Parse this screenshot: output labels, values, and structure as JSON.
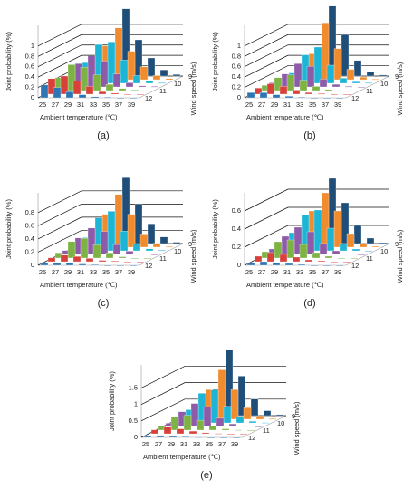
{
  "chart_data": [
    {
      "type": "bar3d",
      "caption": "(a)",
      "x_label": "Ambient temperature (℃)",
      "y_label": "Joint probability (%)",
      "z_label": "Wind speed (m/s)",
      "categories": [
        25,
        27,
        29,
        31,
        33,
        35,
        37,
        39
      ],
      "ylim": [
        0,
        1.4
      ],
      "yticks": [
        0,
        0.2,
        0.4,
        0.6,
        0.8,
        1
      ],
      "series": [
        {
          "name": "9",
          "color": "#1f4e79",
          "values": [
            0.05,
            0.2,
            0.5,
            1.3,
            0.7,
            0.35,
            0.12,
            0.03
          ]
        },
        {
          "name": null,
          "color": "#f08c2e",
          "values": [
            0.08,
            0.3,
            0.65,
            1.0,
            0.55,
            0.25,
            0.08,
            0.02
          ]
        },
        {
          "name": "10",
          "color": "#1cb5d6",
          "values": [
            0.15,
            0.4,
            0.75,
            0.8,
            0.45,
            0.15,
            0.04,
            0.01
          ]
        },
        {
          "name": null,
          "color": "#8e5ba8",
          "values": [
            0.2,
            0.45,
            0.6,
            0.5,
            0.25,
            0.08,
            0.02,
            0.01
          ]
        },
        {
          "name": "11",
          "color": "#7cb342",
          "values": [
            0.25,
            0.5,
            0.45,
            0.3,
            0.12,
            0.04,
            0.01,
            0
          ]
        },
        {
          "name": null,
          "color": "#d9403a",
          "values": [
            0.3,
            0.35,
            0.25,
            0.15,
            0.05,
            0.02,
            0,
            0
          ]
        },
        {
          "name": "12",
          "color": "#2e75b6",
          "values": [
            0.25,
            0.2,
            0.12,
            0.06,
            0.02,
            0.01,
            0,
            0
          ]
        }
      ]
    },
    {
      "type": "bar3d",
      "caption": "(b)",
      "x_label": "Ambient temperature (℃)",
      "y_label": "Joint probability (%)",
      "z_label": "Wind speed (m/s)",
      "categories": [
        25,
        27,
        29,
        31,
        33,
        35,
        37,
        39
      ],
      "ylim": [
        0,
        1.4
      ],
      "yticks": [
        0,
        0.2,
        0.4,
        0.6,
        0.8,
        1
      ],
      "series": [
        {
          "name": "9",
          "color": "#1f4e79",
          "values": [
            0.02,
            0.1,
            0.4,
            1.35,
            0.8,
            0.3,
            0.08,
            0.02
          ]
        },
        {
          "name": null,
          "color": "#f08c2e",
          "values": [
            0.03,
            0.15,
            0.5,
            1.1,
            0.6,
            0.2,
            0.05,
            0.01
          ]
        },
        {
          "name": "10",
          "color": "#1cb5d6",
          "values": [
            0.05,
            0.2,
            0.55,
            0.7,
            0.35,
            0.1,
            0.03,
            0.01
          ]
        },
        {
          "name": null,
          "color": "#8e5ba8",
          "values": [
            0.08,
            0.25,
            0.45,
            0.4,
            0.15,
            0.05,
            0.01,
            0
          ]
        },
        {
          "name": "11",
          "color": "#7cb342",
          "values": [
            0.1,
            0.25,
            0.3,
            0.2,
            0.08,
            0.02,
            0,
            0
          ]
        },
        {
          "name": null,
          "color": "#d9403a",
          "values": [
            0.12,
            0.2,
            0.15,
            0.08,
            0.03,
            0.01,
            0,
            0
          ]
        },
        {
          "name": "12",
          "color": "#2e75b6",
          "values": [
            0.1,
            0.1,
            0.06,
            0.03,
            0.01,
            0,
            0,
            0
          ]
        }
      ]
    },
    {
      "type": "bar3d",
      "caption": "(c)",
      "x_label": "Ambient temperature (℃)",
      "y_label": "Joint probability (%)",
      "z_label": "Wind speed (m/s)",
      "categories": [
        25,
        27,
        29,
        31,
        33,
        35,
        37,
        39
      ],
      "ylim": [
        0,
        1.1
      ],
      "yticks": [
        0,
        0.2,
        0.4,
        0.6,
        0.8
      ],
      "series": [
        {
          "name": "9",
          "color": "#1f4e79",
          "values": [
            0.02,
            0.1,
            0.4,
            1.0,
            0.6,
            0.3,
            0.1,
            0.02
          ]
        },
        {
          "name": null,
          "color": "#f08c2e",
          "values": [
            0.03,
            0.15,
            0.5,
            0.8,
            0.5,
            0.2,
            0.06,
            0.01
          ]
        },
        {
          "name": "10",
          "color": "#1cb5d6",
          "values": [
            0.05,
            0.2,
            0.5,
            0.6,
            0.3,
            0.1,
            0.03,
            0.01
          ]
        },
        {
          "name": null,
          "color": "#8e5ba8",
          "values": [
            0.06,
            0.25,
            0.4,
            0.35,
            0.15,
            0.05,
            0.01,
            0
          ]
        },
        {
          "name": "11",
          "color": "#7cb342",
          "values": [
            0.08,
            0.25,
            0.3,
            0.2,
            0.08,
            0.02,
            0,
            0
          ]
        },
        {
          "name": null,
          "color": "#d9403a",
          "values": [
            0.06,
            0.1,
            0.08,
            0.05,
            0.02,
            0.01,
            0,
            0
          ]
        },
        {
          "name": "12",
          "color": "#2e75b6",
          "values": [
            0.04,
            0.04,
            0.03,
            0.02,
            0.01,
            0,
            0,
            0
          ]
        }
      ]
    },
    {
      "type": "bar3d",
      "caption": "(d)",
      "x_label": "Ambient temperature (℃)",
      "y_label": "Joint probability (%)",
      "z_label": "Wind speed (m/s)",
      "categories": [
        25,
        27,
        29,
        31,
        33,
        35,
        37,
        39
      ],
      "ylim": [
        0,
        0.8
      ],
      "yticks": [
        0,
        0.2,
        0.4,
        0.6
      ],
      "series": [
        {
          "name": "9",
          "color": "#1f4e79",
          "values": [
            0.02,
            0.1,
            0.35,
            0.72,
            0.45,
            0.2,
            0.06,
            0.01
          ]
        },
        {
          "name": null,
          "color": "#f08c2e",
          "values": [
            0.03,
            0.15,
            0.4,
            0.6,
            0.4,
            0.15,
            0.04,
            0.01
          ]
        },
        {
          "name": "10",
          "color": "#1cb5d6",
          "values": [
            0.05,
            0.2,
            0.4,
            0.45,
            0.25,
            0.08,
            0.02,
            0
          ]
        },
        {
          "name": null,
          "color": "#8e5ba8",
          "values": [
            0.06,
            0.2,
            0.3,
            0.25,
            0.12,
            0.04,
            0.01,
            0
          ]
        },
        {
          "name": "11",
          "color": "#7cb342",
          "values": [
            0.07,
            0.18,
            0.2,
            0.15,
            0.06,
            0.02,
            0,
            0
          ]
        },
        {
          "name": null,
          "color": "#d9403a",
          "values": [
            0.06,
            0.1,
            0.08,
            0.05,
            0.02,
            0.01,
            0,
            0
          ]
        },
        {
          "name": "12",
          "color": "#2e75b6",
          "values": [
            0.03,
            0.04,
            0.03,
            0.02,
            0.01,
            0,
            0,
            0
          ]
        }
      ]
    },
    {
      "type": "bar3d",
      "caption": "(e)",
      "x_label": "Ambient temperature (℃)",
      "y_label": "Joint probability (%)",
      "z_label": "Wind speed (m/s)",
      "categories": [
        25,
        27,
        29,
        31,
        33,
        35,
        37,
        39
      ],
      "ylim": [
        0,
        2.2
      ],
      "yticks": [
        0,
        0.5,
        1,
        1.5
      ],
      "series": [
        {
          "name": "9",
          "color": "#1f4e79",
          "values": [
            0.03,
            0.2,
            0.8,
            2.0,
            1.2,
            0.5,
            0.15,
            0.03
          ]
        },
        {
          "name": null,
          "color": "#f08c2e",
          "values": [
            0.05,
            0.3,
            0.9,
            1.5,
            0.9,
            0.35,
            0.1,
            0.02
          ]
        },
        {
          "name": "10",
          "color": "#1cb5d6",
          "values": [
            0.08,
            0.4,
            0.9,
            1.0,
            0.5,
            0.18,
            0.05,
            0.01
          ]
        },
        {
          "name": null,
          "color": "#8e5ba8",
          "values": [
            0.1,
            0.45,
            0.7,
            0.6,
            0.25,
            0.08,
            0.02,
            0
          ]
        },
        {
          "name": "11",
          "color": "#7cb342",
          "values": [
            0.12,
            0.4,
            0.45,
            0.3,
            0.12,
            0.04,
            0.01,
            0
          ]
        },
        {
          "name": null,
          "color": "#d9403a",
          "values": [
            0.12,
            0.2,
            0.15,
            0.08,
            0.03,
            0.01,
            0,
            0
          ]
        },
        {
          "name": "12",
          "color": "#2e75b6",
          "values": [
            0.06,
            0.06,
            0.04,
            0.02,
            0.01,
            0,
            0,
            0
          ]
        }
      ]
    }
  ]
}
